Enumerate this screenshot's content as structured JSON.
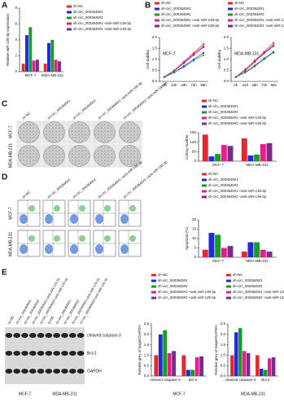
{
  "panel_labels": [
    "A",
    "B",
    "C",
    "D",
    "E"
  ],
  "images": {
    "C": {
      "rows": [
        "MCF-7",
        "MDA-MB-231"
      ],
      "columns": [
        "sh-NC",
        "sh-circ_0003645#1",
        "sh-circ_0003645#2",
        "sh-circ_0003645#1 +anti-miR-139-3p",
        "sh-circ_0003645#2 +anti-miR-139-3p"
      ]
    },
    "D": {
      "rows": [
        "MCF-7",
        "MDA-MB-231"
      ],
      "columns": [
        "sh-NC",
        "sh-circ_0003645#1",
        "sh-circ_0003645#2",
        "sh-circ_0003645#1 +anti-miR-139-3p",
        "sh-circ_0003645#2 +anti-miR-139-3p"
      ]
    },
    "E": {
      "lanes": [
        "sh-NC",
        "sh-circ_0003645#1",
        "sh-circ_0003645#2",
        "sh-circ_0003645#1+anti-miR-139-3p",
        "sh-circ_0003645#2+anti-miR-139-3p",
        "sh-NC",
        "sh-circ_0003645#1",
        "sh-circ_0003645#2",
        "sh-circ_0003645#1+anti-miR-139-3p",
        "sh-circ_0003645#2+anti-miR-139-3p"
      ],
      "bands": [
        "cleaved caspase-3",
        "Bcl-2",
        "GAPDH"
      ],
      "groups": [
        "MCF-7",
        "MDA-MB-231"
      ]
    }
  },
  "chart_data": [
    {
      "type": "bar",
      "ylabel": "Relative miR-139-3p expression",
      "categories": [
        "MCF-7",
        "MDA-MB-231"
      ],
      "ylim": [
        0,
        8
      ],
      "yticks": [
        0,
        2,
        4,
        6,
        8
      ],
      "series": [
        {
          "name": "sh-NC",
          "color": "#e8262b",
          "values": [
            1.0,
            1.0
          ]
        },
        {
          "name": "sh-circ_0003645#1",
          "color": "#1f2bd6",
          "values": [
            4.6,
            3.6
          ]
        },
        {
          "name": "sh-circ_0003645#2",
          "color": "#1a9a2e",
          "values": [
            5.6,
            4.0
          ]
        },
        {
          "name": "sh-circ_0003645#1 +anti-miR-139-3p",
          "color": "#e0218a",
          "values": [
            1.4,
            1.5
          ]
        },
        {
          "name": "sh-circ_0003645#2 +anti-miR-139-3p",
          "color": "#7b2a90",
          "values": [
            1.5,
            1.3
          ]
        }
      ]
    },
    {
      "type": "line",
      "title": "MCF-7",
      "ylabel": "Cell viability",
      "categories": [
        "0h",
        "24h",
        "48h",
        "72h",
        "96h"
      ],
      "ylim": [
        0,
        2.0
      ],
      "yticks": [
        {
          "value": 0,
          "label": "0.0"
        },
        {
          "value": 0.5,
          "label": "0.5"
        },
        {
          "value": 1,
          "label": "1.0"
        },
        {
          "value": 1.5,
          "label": "1.5"
        },
        {
          "value": 2,
          "label": "2.0"
        }
      ],
      "series": [
        {
          "name": "sh-NC",
          "color": "#e8262b",
          "values": [
            0.2,
            0.5,
            0.9,
            1.3,
            1.7
          ]
        },
        {
          "name": "sh-circ_0003645#1",
          "color": "#1f2bd6",
          "values": [
            0.2,
            0.4,
            0.7,
            1.0,
            1.3
          ]
        },
        {
          "name": "sh-circ_0003645#2",
          "color": "#1a9a2e",
          "values": [
            0.2,
            0.4,
            0.65,
            0.95,
            1.2
          ]
        },
        {
          "name": "sh-circ_0003645#1 +anti-miR-139-3p",
          "color": "#e0218a",
          "values": [
            0.2,
            0.48,
            0.85,
            1.25,
            1.6
          ]
        },
        {
          "name": "sh-circ_0003645#2 +anti-miR-139-3p",
          "color": "#7b2a90",
          "values": [
            0.2,
            0.47,
            0.83,
            1.2,
            1.55
          ]
        }
      ]
    },
    {
      "type": "line",
      "title": "MDA-MB-231",
      "ylabel": "Cell viability",
      "categories": [
        "0h",
        "24h",
        "48h",
        "72h",
        "96h"
      ],
      "ylim": [
        0,
        2.0
      ],
      "yticks": [
        {
          "value": 0,
          "label": "0.0"
        },
        {
          "value": 0.5,
          "label": "0.5"
        },
        {
          "value": 1,
          "label": "1.0"
        },
        {
          "value": 1.5,
          "label": "1.5"
        },
        {
          "value": 2,
          "label": "2.0"
        }
      ],
      "series": [
        {
          "name": "sh-NC",
          "color": "#e8262b",
          "values": [
            0.2,
            0.55,
            0.95,
            1.35,
            1.75
          ]
        },
        {
          "name": "sh-circ_0003645#1",
          "color": "#1f2bd6",
          "values": [
            0.2,
            0.42,
            0.72,
            1.05,
            1.35
          ]
        },
        {
          "name": "sh-circ_0003645#2",
          "color": "#1a9a2e",
          "values": [
            0.2,
            0.4,
            0.68,
            1.0,
            1.3
          ]
        },
        {
          "name": "sh-circ_0003645#1 +anti-miR-139-3p",
          "color": "#e0218a",
          "values": [
            0.2,
            0.5,
            0.9,
            1.3,
            1.65
          ]
        },
        {
          "name": "sh-circ_0003645#2 +anti-miR-139-3p",
          "color": "#7b2a90",
          "values": [
            0.2,
            0.5,
            0.88,
            1.28,
            1.6
          ]
        }
      ]
    },
    {
      "type": "bar",
      "ylabel": "Colony number",
      "categories": [
        "MCF-7",
        "MDA-MB-231"
      ],
      "ylim": [
        0,
        150
      ],
      "yticks": [
        0,
        50,
        100,
        150
      ],
      "series": [
        {
          "name": "sh-NC",
          "color": "#e8262b",
          "values": [
            140,
            120
          ]
        },
        {
          "name": "sh-circ_0003645#1",
          "color": "#1f2bd6",
          "values": [
            25,
            30
          ]
        },
        {
          "name": "sh-circ_0003645#2",
          "color": "#1a9a2e",
          "values": [
            38,
            35
          ]
        },
        {
          "name": "sh-circ_0003645#1 +anti-miR-139-3p",
          "color": "#e0218a",
          "values": [
            85,
            90
          ]
        },
        {
          "name": "sh-circ_0003645#2 +anti-miR-139-3p",
          "color": "#7b2a90",
          "values": [
            80,
            95
          ]
        }
      ]
    },
    {
      "type": "bar",
      "ylabel": "Apoptosis (%)",
      "categories": [
        "MCF-7",
        "MDA-MB-231"
      ],
      "ylim": [
        0,
        20
      ],
      "yticks": [
        0,
        5,
        10,
        15,
        20
      ],
      "series": [
        {
          "name": "sh-NC",
          "color": "#e8262b",
          "values": [
            4,
            3
          ]
        },
        {
          "name": "sh-circ_0003645#1",
          "color": "#1f2bd6",
          "values": [
            13,
            8
          ]
        },
        {
          "name": "sh-circ_0003645#2",
          "color": "#1a9a2e",
          "values": [
            12,
            8
          ]
        },
        {
          "name": "sh-circ_0003645#1 +anti-miR-139-3p",
          "color": "#e0218a",
          "values": [
            5,
            4
          ]
        },
        {
          "name": "sh-circ_0003645#2 +anti-miR-139-3p",
          "color": "#7b2a90",
          "values": [
            6,
            3
          ]
        }
      ]
    },
    {
      "type": "bar",
      "title": "MCF-7",
      "ylabel": "Relative grey of target/GAPDH",
      "categories": [
        "cleaved caspase-3",
        "Bcl-2"
      ],
      "ylim": [
        0,
        2.5
      ],
      "yticks": [
        {
          "value": 0,
          "label": "0.0"
        },
        {
          "value": 0.5,
          "label": "0.5"
        },
        {
          "value": 1,
          "label": "1.0"
        },
        {
          "value": 1.5,
          "label": "1.5"
        },
        {
          "value": 2,
          "label": "2.0"
        },
        {
          "value": 2.5,
          "label": "2.5"
        }
      ],
      "series": [
        {
          "name": "sh-NC",
          "color": "#e8262b",
          "values": [
            1.0,
            1.0
          ]
        },
        {
          "name": "sh-circ_0003645#1",
          "color": "#1f2bd6",
          "values": [
            2.0,
            0.3
          ]
        },
        {
          "name": "sh-circ_0003645#2",
          "color": "#1a9a2e",
          "values": [
            2.2,
            0.3
          ]
        },
        {
          "name": "sh-circ_0003645#1 +anti-miR-139-3p",
          "color": "#e0218a",
          "values": [
            1.1,
            0.9
          ]
        },
        {
          "name": "sh-circ_0003645#2 +anti-miR-139-3p",
          "color": "#7b2a90",
          "values": [
            1.2,
            0.95
          ]
        }
      ]
    },
    {
      "type": "bar",
      "title": "MDA-MB-231",
      "ylabel": "Relative grey of target/GAPDH",
      "categories": [
        "cleaved caspase-3",
        "Bcl-2"
      ],
      "ylim": [
        0,
        2.5
      ],
      "yticks": [
        {
          "value": 0,
          "label": "0.0"
        },
        {
          "value": 0.5,
          "label": "0.5"
        },
        {
          "value": 1,
          "label": "1.0"
        },
        {
          "value": 1.5,
          "label": "1.5"
        },
        {
          "value": 2,
          "label": "2.0"
        },
        {
          "value": 2.5,
          "label": "2.5"
        }
      ],
      "series": [
        {
          "name": "sh-NC",
          "color": "#e8262b",
          "values": [
            1.0,
            1.0
          ]
        },
        {
          "name": "sh-circ_0003645#1",
          "color": "#1f2bd6",
          "values": [
            2.1,
            0.35
          ]
        },
        {
          "name": "sh-circ_0003645#2",
          "color": "#1a9a2e",
          "values": [
            2.3,
            0.3
          ]
        },
        {
          "name": "sh-circ_0003645#1 +anti-miR-139-3p",
          "color": "#e0218a",
          "values": [
            1.2,
            0.85
          ]
        },
        {
          "name": "sh-circ_0003645#2 +anti-miR-139-3p",
          "color": "#7b2a90",
          "values": [
            1.1,
            0.9
          ]
        }
      ]
    }
  ]
}
